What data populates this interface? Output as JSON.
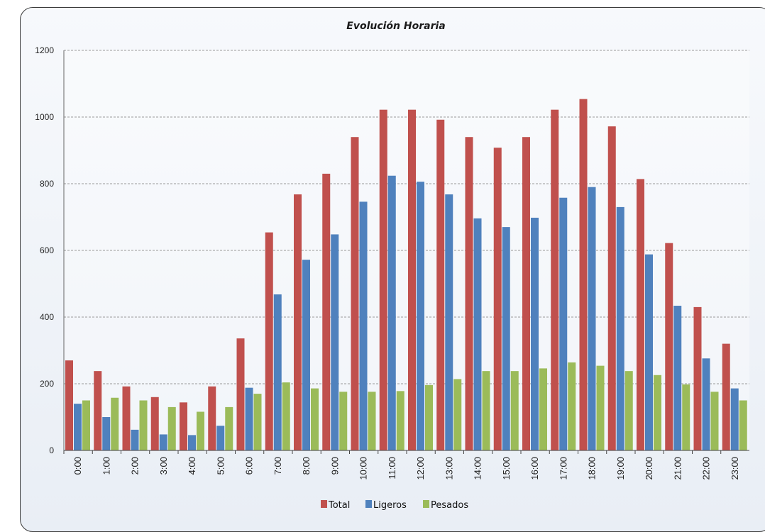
{
  "chart_data": {
    "type": "bar",
    "title": "Evolución Horaria",
    "categories": [
      "0:00",
      "1:00",
      "2:00",
      "3:00",
      "4:00",
      "5:00",
      "6:00",
      "7:00",
      "8:00",
      "9:00",
      "10:00",
      "11:00",
      "12:00",
      "13:00",
      "14:00",
      "15:00",
      "16:00",
      "17:00",
      "18:00",
      "19:00",
      "20:00",
      "21:00",
      "22:00",
      "23:00"
    ],
    "series": [
      {
        "name": "Total",
        "color": "#c0504d",
        "values": [
          270,
          238,
          192,
          160,
          144,
          192,
          336,
          654,
          768,
          830,
          940,
          1022,
          1022,
          992,
          940,
          908,
          940,
          1022,
          1054,
          972,
          814,
          622,
          430,
          320
        ]
      },
      {
        "name": "Ligeros",
        "color": "#4f81bd",
        "values": [
          140,
          100,
          62,
          48,
          46,
          74,
          188,
          468,
          572,
          648,
          746,
          824,
          806,
          768,
          696,
          670,
          698,
          758,
          790,
          730,
          588,
          434,
          276,
          186
        ]
      },
      {
        "name": "Pesados",
        "color": "#9bbb59",
        "values": [
          150,
          158,
          150,
          130,
          116,
          130,
          170,
          204,
          186,
          176,
          176,
          178,
          196,
          214,
          238,
          238,
          246,
          264,
          254,
          238,
          226,
          198,
          176,
          150
        ]
      }
    ],
    "yticks": [
      0,
      200,
      400,
      600,
      800,
      1000,
      1200
    ],
    "ylim": [
      0,
      1200
    ],
    "grid": true,
    "legend": "bottom"
  }
}
